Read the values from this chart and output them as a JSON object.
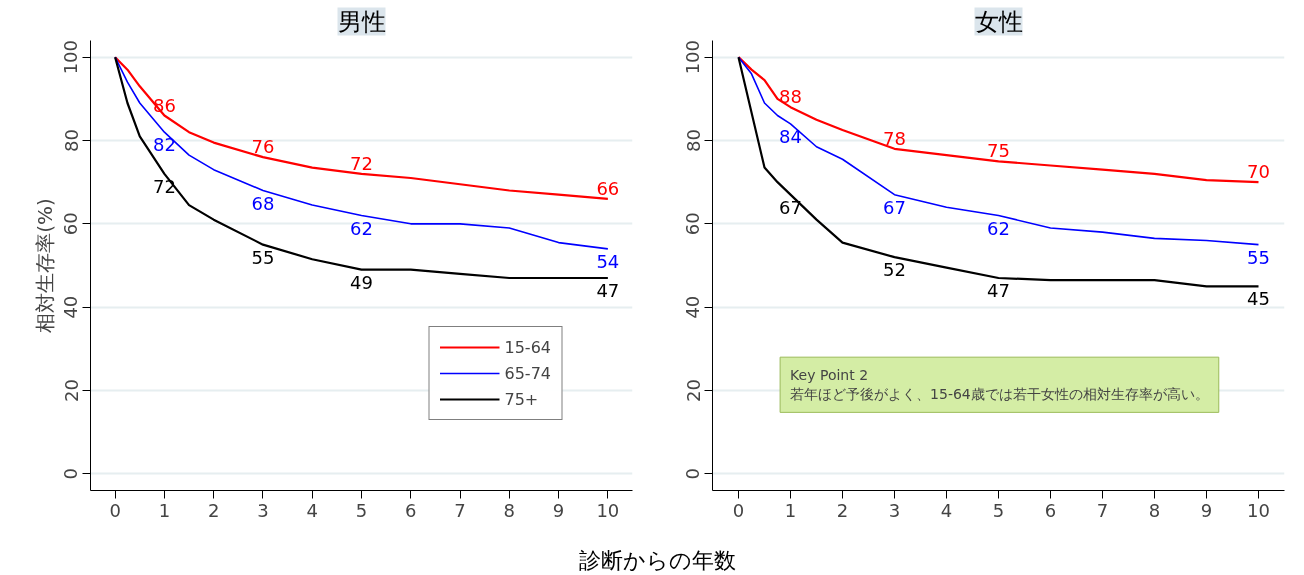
{
  "chart_data": [
    {
      "type": "line",
      "title": "男性",
      "xlabel": "診断からの年数",
      "ylabel": "相対生存率(%)",
      "xlim": [
        -0.5,
        10.5
      ],
      "ylim": [
        -4,
        104
      ],
      "xticks": [
        0,
        1,
        2,
        3,
        4,
        5,
        6,
        7,
        8,
        9,
        10
      ],
      "yticks": [
        0,
        20,
        40,
        60,
        80,
        100
      ],
      "grid": "y",
      "legend": "bottom right",
      "marker": "none",
      "line_style": "solid",
      "series": [
        {
          "name": "15-64",
          "color": "#ff0000",
          "x": [
            0,
            0.25,
            0.5,
            1,
            1.5,
            2,
            3,
            4,
            5,
            6,
            7,
            8,
            9,
            10
          ],
          "values": [
            100,
            97,
            93,
            86,
            82,
            79.5,
            76,
            73.5,
            72,
            71,
            69.5,
            68,
            67,
            66
          ],
          "value_labels": [
            null,
            null,
            null,
            "86",
            null,
            null,
            "76",
            null,
            "72",
            null,
            null,
            null,
            null,
            "66"
          ]
        },
        {
          "name": "65-74",
          "color": "#0000ff",
          "x": [
            0,
            0.25,
            0.5,
            1,
            1.5,
            2,
            3,
            4,
            5,
            6,
            7,
            8,
            9,
            10
          ],
          "values": [
            100,
            94,
            89,
            82,
            76.5,
            73,
            68,
            64.5,
            62,
            60,
            60,
            59,
            55.5,
            54
          ],
          "value_labels": [
            null,
            null,
            null,
            "82",
            null,
            null,
            "68",
            null,
            "62",
            null,
            null,
            null,
            null,
            "54"
          ]
        },
        {
          "name": "75+",
          "color": "#000000",
          "x": [
            0,
            0.25,
            0.5,
            1,
            1.5,
            2,
            3,
            4,
            5,
            6,
            7,
            8,
            9,
            10
          ],
          "values": [
            100,
            89,
            81,
            72,
            64.5,
            61,
            55,
            51.5,
            49,
            49,
            48,
            47,
            47,
            47
          ],
          "value_labels": [
            null,
            null,
            null,
            "72",
            null,
            null,
            "55",
            null,
            "49",
            null,
            null,
            null,
            null,
            "47"
          ]
        }
      ]
    },
    {
      "type": "line",
      "title": "女性",
      "xlim": [
        -0.5,
        10.5
      ],
      "ylim": [
        -4,
        104
      ],
      "xticks": [
        0,
        1,
        2,
        3,
        4,
        5,
        6,
        7,
        8,
        9,
        10
      ],
      "yticks": [
        0,
        20,
        40,
        60,
        80,
        100
      ],
      "grid": "y",
      "marker": "none",
      "line_style": "solid",
      "annotations": [
        "Key Point 2\n若年ほど予後がよく、15-64歳では若干女性の相対生存率が高い。"
      ],
      "series": [
        {
          "color": "#ff0000",
          "x": [
            0,
            0.25,
            0.5,
            0.75,
            1,
            1.5,
            2,
            3,
            4,
            5,
            6,
            7,
            8,
            9,
            10
          ],
          "values": [
            100,
            97,
            94.5,
            90,
            88,
            85,
            82.5,
            78,
            76.5,
            75,
            74,
            73,
            72,
            70.5,
            70
          ],
          "value_labels": [
            null,
            null,
            null,
            null,
            "88",
            null,
            null,
            "78",
            null,
            "75",
            null,
            null,
            null,
            null,
            "70"
          ]
        },
        {
          "color": "#0000ff",
          "x": [
            0,
            0.25,
            0.5,
            0.75,
            1,
            1.5,
            2,
            3,
            4,
            5,
            6,
            7,
            8,
            9,
            10
          ],
          "values": [
            100,
            96,
            89,
            86,
            84,
            78.5,
            75.5,
            67,
            64,
            62,
            59,
            58,
            56.5,
            56,
            55
          ],
          "value_labels": [
            null,
            null,
            null,
            null,
            "84",
            null,
            null,
            "67",
            null,
            "62",
            null,
            null,
            null,
            null,
            "55"
          ]
        },
        {
          "color": "#000000",
          "x": [
            0,
            0.5,
            0.75,
            1,
            1.5,
            2,
            3,
            4,
            5,
            6,
            7,
            8,
            9,
            10
          ],
          "values": [
            100,
            73.5,
            70,
            67,
            61,
            55.5,
            52,
            49.5,
            47,
            46.5,
            46.5,
            46.5,
            45,
            45
          ],
          "value_labels": [
            null,
            null,
            null,
            "67",
            null,
            null,
            "52",
            null,
            "47",
            null,
            null,
            null,
            null,
            "45"
          ]
        }
      ]
    }
  ]
}
